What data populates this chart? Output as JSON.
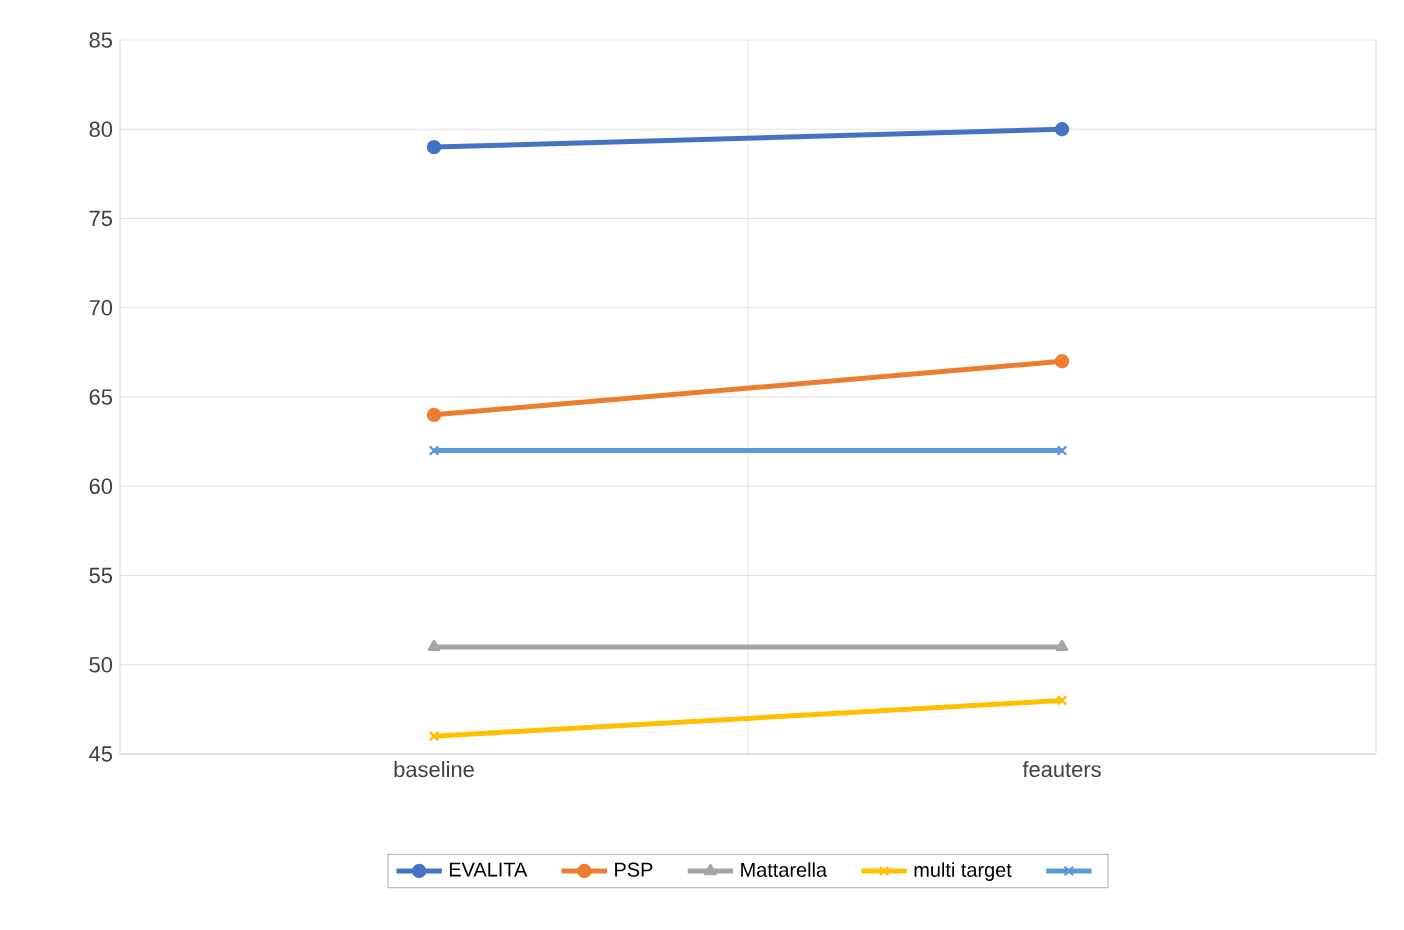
{
  "chart_data": {
    "type": "line",
    "categories": [
      "baseline",
      "feauters"
    ],
    "series": [
      {
        "name": "EVALITA",
        "color": "#4472c4",
        "marker": "circle",
        "values": [
          79,
          80
        ]
      },
      {
        "name": "PSP",
        "color": "#ed7d31",
        "marker": "circle",
        "values": [
          64,
          67
        ]
      },
      {
        "name": "Mattarella",
        "color": "#a5a5a5",
        "marker": "triangle",
        "values": [
          51,
          51
        ]
      },
      {
        "name": "multi target",
        "color": "#ffc000",
        "marker": "cross",
        "values": [
          46,
          48
        ]
      },
      {
        "color": "#5b9bd5",
        "marker": "cross",
        "values": [
          62,
          62
        ]
      }
    ],
    "ylim": [
      45,
      85
    ],
    "yticks": [
      45,
      50,
      55,
      60,
      65,
      70,
      75,
      80,
      85
    ],
    "grid": true,
    "legend": "bottom",
    "line_style": "solid"
  }
}
